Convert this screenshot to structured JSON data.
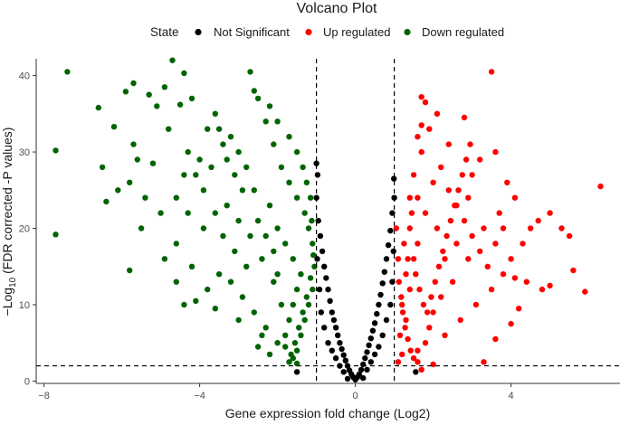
{
  "chart_data": {
    "type": "scatter",
    "title": "Volcano Plot",
    "xlabel": "Gene expression fold change (Log2)",
    "ylabel_prefix": "−Log",
    "ylabel_sub": "10",
    "ylabel_suffix": " (FDR corrected -P values)",
    "xlim": [
      -8.2,
      6.8
    ],
    "ylim": [
      -0.3,
      42.2
    ],
    "xticks": [
      -8,
      -4,
      0,
      4
    ],
    "yticks": [
      0,
      10,
      20,
      30,
      40
    ],
    "grid": false,
    "thresholds": {
      "x": [
        -1,
        1
      ],
      "y": 2
    },
    "legend": {
      "title": "State",
      "placement": "top",
      "items": [
        {
          "label": "Not Significant",
          "color": "#000000"
        },
        {
          "label": "Up regulated",
          "color": "#ff0000"
        },
        {
          "label": "Down regulated",
          "color": "#006400"
        }
      ]
    },
    "series": [
      {
        "name": "Not Significant",
        "color": "#000000",
        "points": [
          [
            -1.0,
            24
          ],
          [
            -0.95,
            21
          ],
          [
            -0.9,
            19
          ],
          [
            -0.85,
            17
          ],
          [
            -0.8,
            15
          ],
          [
            -0.75,
            13.5
          ],
          [
            -0.7,
            12
          ],
          [
            -0.65,
            10.5
          ],
          [
            -0.6,
            9
          ],
          [
            -0.55,
            8
          ],
          [
            -0.5,
            7
          ],
          [
            -0.45,
            6
          ],
          [
            -0.4,
            5
          ],
          [
            -0.35,
            4.2
          ],
          [
            -0.3,
            3.4
          ],
          [
            -0.25,
            2.7
          ],
          [
            -0.2,
            2.0
          ],
          [
            -0.15,
            1.4
          ],
          [
            -0.1,
            0.9
          ],
          [
            -0.05,
            0.5
          ],
          [
            0.0,
            0.2
          ],
          [
            0.05,
            0.5
          ],
          [
            0.1,
            0.9
          ],
          [
            0.15,
            1.5
          ],
          [
            0.2,
            2.2
          ],
          [
            0.25,
            3.0
          ],
          [
            0.3,
            3.8
          ],
          [
            0.35,
            4.7
          ],
          [
            0.4,
            5.6
          ],
          [
            0.45,
            6.6
          ],
          [
            0.5,
            7.6
          ],
          [
            0.55,
            8.8
          ],
          [
            0.6,
            10
          ],
          [
            0.65,
            11.3
          ],
          [
            0.7,
            12.8
          ],
          [
            0.75,
            14.3
          ],
          [
            0.8,
            16
          ],
          [
            0.85,
            17.8
          ],
          [
            0.9,
            19.7
          ],
          [
            0.95,
            22
          ],
          [
            1.0,
            24
          ],
          [
            -0.98,
            16
          ],
          [
            -0.92,
            12
          ],
          [
            -0.88,
            9
          ],
          [
            -0.8,
            7
          ],
          [
            -0.7,
            5
          ],
          [
            -0.6,
            4
          ],
          [
            -0.5,
            3
          ],
          [
            -0.4,
            2
          ],
          [
            -0.3,
            1.2
          ],
          [
            0.3,
            1.5
          ],
          [
            0.4,
            2.5
          ],
          [
            0.5,
            3.5
          ],
          [
            0.6,
            4.5
          ],
          [
            0.7,
            6
          ],
          [
            0.8,
            8
          ],
          [
            0.9,
            10
          ],
          [
            0.95,
            13
          ],
          [
            0.98,
            17
          ],
          [
            -0.97,
            27
          ],
          [
            -1.0,
            28.5
          ],
          [
            0.99,
            26.5
          ],
          [
            -1.5,
            1.2
          ],
          [
            1.55,
            1.2
          ],
          [
            -0.2,
            0.3
          ],
          [
            0.2,
            0.4
          ]
        ]
      },
      {
        "name": "Up regulated",
        "color": "#ff0000",
        "points": [
          [
            1.1,
            2.5
          ],
          [
            1.2,
            3.5
          ],
          [
            1.15,
            6
          ],
          [
            1.3,
            8
          ],
          [
            1.2,
            10
          ],
          [
            1.4,
            12
          ],
          [
            1.3,
            14
          ],
          [
            1.5,
            16
          ],
          [
            1.6,
            18
          ],
          [
            1.4,
            20
          ],
          [
            1.8,
            22
          ],
          [
            1.6,
            24
          ],
          [
            2.0,
            26
          ],
          [
            1.5,
            27
          ],
          [
            1.7,
            30
          ],
          [
            1.6,
            32
          ],
          [
            1.7,
            33.5
          ],
          [
            1.8,
            36.5
          ],
          [
            1.7,
            37.2
          ],
          [
            2.2,
            28
          ],
          [
            2.4,
            25
          ],
          [
            2.6,
            23
          ],
          [
            2.8,
            21
          ],
          [
            3.0,
            19
          ],
          [
            3.2,
            17
          ],
          [
            3.4,
            15
          ],
          [
            2.5,
            13
          ],
          [
            2.2,
            11
          ],
          [
            2.0,
            9
          ],
          [
            1.9,
            7
          ],
          [
            1.8,
            5
          ],
          [
            1.6,
            4
          ],
          [
            2.3,
            6
          ],
          [
            2.7,
            8
          ],
          [
            3.1,
            10
          ],
          [
            3.5,
            12
          ],
          [
            3.8,
            14
          ],
          [
            4.0,
            16
          ],
          [
            4.3,
            18
          ],
          [
            4.5,
            20
          ],
          [
            4.7,
            21
          ],
          [
            5.0,
            22
          ],
          [
            5.3,
            20
          ],
          [
            5.5,
            19
          ],
          [
            5.6,
            14.5
          ],
          [
            5.9,
            11.7
          ],
          [
            4.1,
            13.5
          ],
          [
            4.4,
            13
          ],
          [
            4.8,
            12
          ],
          [
            5.0,
            12.5
          ],
          [
            4.2,
            9.5
          ],
          [
            4.0,
            7.5
          ],
          [
            3.6,
            5.5
          ],
          [
            3.3,
            2.5
          ],
          [
            2.8,
            34.5
          ],
          [
            3.5,
            40.5
          ],
          [
            3.6,
            30
          ],
          [
            6.3,
            25.5
          ],
          [
            3.0,
            27
          ],
          [
            3.2,
            29
          ],
          [
            2.4,
            31
          ],
          [
            1.9,
            33
          ],
          [
            2.1,
            35
          ],
          [
            2.9,
            24
          ],
          [
            3.7,
            22
          ],
          [
            3.9,
            26
          ],
          [
            4.1,
            24
          ],
          [
            2.6,
            18
          ],
          [
            2.9,
            16
          ],
          [
            3.3,
            20
          ],
          [
            3.6,
            18
          ],
          [
            3.8,
            20
          ],
          [
            2.1,
            20
          ],
          [
            2.3,
            16
          ],
          [
            1.4,
            24
          ],
          [
            1.25,
            18
          ],
          [
            1.35,
            16
          ],
          [
            1.45,
            22
          ],
          [
            1.55,
            14
          ],
          [
            1.65,
            12
          ],
          [
            1.75,
            10
          ],
          [
            1.85,
            9
          ],
          [
            1.95,
            11
          ],
          [
            2.05,
            13
          ],
          [
            2.15,
            15
          ],
          [
            2.25,
            17
          ],
          [
            2.35,
            19
          ],
          [
            2.45,
            21
          ],
          [
            2.55,
            23
          ],
          [
            2.65,
            25
          ],
          [
            2.75,
            27
          ],
          [
            2.85,
            29
          ],
          [
            2.95,
            31
          ],
          [
            1.05,
            20
          ],
          [
            1.1,
            16
          ],
          [
            1.12,
            13
          ],
          [
            1.18,
            11
          ],
          [
            1.22,
            9
          ],
          [
            1.28,
            7
          ],
          [
            1.35,
            5.5
          ],
          [
            1.42,
            4
          ],
          [
            1.5,
            3
          ],
          [
            1.6,
            2.5
          ],
          [
            2.0,
            2.2
          ],
          [
            1.7,
            1.5
          ]
        ]
      },
      {
        "name": "Down regulated",
        "color": "#006400",
        "points": [
          [
            -7.4,
            40.5
          ],
          [
            -7.7,
            30.2
          ],
          [
            -7.7,
            19.2
          ],
          [
            -6.6,
            35.8
          ],
          [
            -6.5,
            28
          ],
          [
            -6.2,
            33.3
          ],
          [
            -5.9,
            37.9
          ],
          [
            -5.7,
            39
          ],
          [
            -5.7,
            31
          ],
          [
            -5.6,
            29
          ],
          [
            -5.8,
            14.5
          ],
          [
            -5.3,
            37.5
          ],
          [
            -5.1,
            36
          ],
          [
            -5.2,
            28.5
          ],
          [
            -4.9,
            38.5
          ],
          [
            -4.7,
            42
          ],
          [
            -4.8,
            33
          ],
          [
            -4.5,
            36.2
          ],
          [
            -4.4,
            40.3
          ],
          [
            -4.2,
            37
          ],
          [
            -4.3,
            30
          ],
          [
            -4.1,
            27
          ],
          [
            -3.9,
            25
          ],
          [
            -3.8,
            33
          ],
          [
            -3.6,
            35
          ],
          [
            -3.4,
            31
          ],
          [
            -3.3,
            29
          ],
          [
            -3.1,
            27
          ],
          [
            -2.9,
            25
          ],
          [
            -2.7,
            40.5
          ],
          [
            -2.5,
            37
          ],
          [
            -2.3,
            34
          ],
          [
            -2.1,
            31
          ],
          [
            -1.9,
            28
          ],
          [
            -1.7,
            26
          ],
          [
            -1.5,
            24
          ],
          [
            -1.3,
            22
          ],
          [
            -1.2,
            20
          ],
          [
            -1.1,
            18
          ],
          [
            -1.05,
            15
          ],
          [
            -1.1,
            12
          ],
          [
            -1.2,
            10
          ],
          [
            -1.3,
            8
          ],
          [
            -1.4,
            6
          ],
          [
            -1.5,
            4
          ],
          [
            -1.6,
            3
          ],
          [
            -1.7,
            2.5
          ],
          [
            -2.0,
            5
          ],
          [
            -2.3,
            7
          ],
          [
            -2.6,
            9
          ],
          [
            -2.9,
            11
          ],
          [
            -3.2,
            13
          ],
          [
            -3.5,
            14
          ],
          [
            -3.8,
            12
          ],
          [
            -4.1,
            10.5
          ],
          [
            -4.4,
            10
          ],
          [
            -4.2,
            15
          ],
          [
            -4.6,
            18
          ],
          [
            -5.0,
            22
          ],
          [
            -5.4,
            24
          ],
          [
            -5.8,
            26
          ],
          [
            -6.1,
            25
          ],
          [
            -6.4,
            23.5
          ],
          [
            -5.5,
            20
          ],
          [
            -4.9,
            16
          ],
          [
            -4.6,
            13
          ],
          [
            -3.6,
            9.5
          ],
          [
            -3.0,
            8
          ],
          [
            -2.4,
            6
          ],
          [
            -1.8,
            4.5
          ],
          [
            -2.1,
            13
          ],
          [
            -2.4,
            16
          ],
          [
            -2.7,
            19
          ],
          [
            -3.0,
            21
          ],
          [
            -3.3,
            23
          ],
          [
            -3.6,
            22
          ],
          [
            -3.9,
            20
          ],
          [
            -4.3,
            22
          ],
          [
            -4.6,
            24
          ],
          [
            -2.2,
            23
          ],
          [
            -2.5,
            21
          ],
          [
            -2.8,
            15
          ],
          [
            -3.1,
            17
          ],
          [
            -3.4,
            19
          ],
          [
            -1.6,
            16
          ],
          [
            -1.8,
            18
          ],
          [
            -2.0,
            20
          ],
          [
            -1.4,
            14
          ],
          [
            -1.5,
            12
          ],
          [
            -1.6,
            10
          ],
          [
            -1.7,
            8
          ],
          [
            -1.8,
            6
          ],
          [
            -1.9,
            10
          ],
          [
            -2.0,
            14
          ],
          [
            -2.1,
            17
          ],
          [
            -2.3,
            19
          ],
          [
            -2.6,
            25
          ],
          [
            -2.8,
            28
          ],
          [
            -3.0,
            30
          ],
          [
            -3.2,
            32
          ],
          [
            -3.5,
            33
          ],
          [
            -3.7,
            28
          ],
          [
            -4.0,
            29
          ],
          [
            -4.4,
            27
          ],
          [
            -1.25,
            26
          ],
          [
            -1.35,
            28
          ],
          [
            -1.5,
            30
          ],
          [
            -1.7,
            32
          ],
          [
            -2.0,
            34
          ],
          [
            -2.2,
            36
          ],
          [
            -2.6,
            38
          ],
          [
            -1.15,
            24
          ],
          [
            -1.12,
            21
          ],
          [
            -1.08,
            16.5
          ],
          [
            -1.15,
            13.5
          ],
          [
            -1.25,
            11
          ],
          [
            -1.35,
            9
          ],
          [
            -1.45,
            7
          ],
          [
            -1.55,
            5
          ],
          [
            -1.65,
            3.5
          ],
          [
            -1.5,
            2.3
          ],
          [
            -2.2,
            3.5
          ],
          [
            -2.5,
            4.5
          ]
        ]
      }
    ]
  }
}
